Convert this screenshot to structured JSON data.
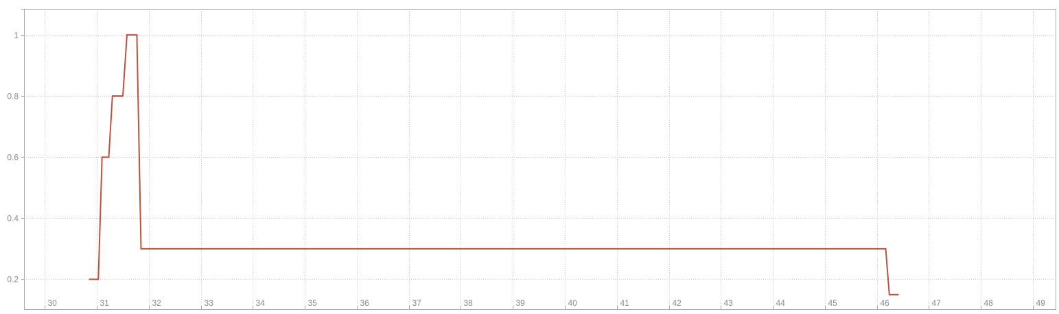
{
  "chart_data": {
    "type": "line",
    "title": "",
    "xlabel": "",
    "ylabel": "",
    "xlim": [
      29.6,
      49.45
    ],
    "ylim": [
      0.1,
      1.085
    ],
    "x_ticks": [
      30,
      31,
      32,
      33,
      34,
      35,
      36,
      37,
      38,
      39,
      40,
      41,
      42,
      43,
      44,
      45,
      46,
      47,
      48,
      49
    ],
    "x_tick_labels": [
      "30",
      "31",
      "32",
      "33",
      "34",
      "35",
      "36",
      "37",
      "38",
      "39",
      "40",
      "41",
      "42",
      "43",
      "44",
      "45",
      "46",
      "47",
      "48",
      "49"
    ],
    "y_ticks": [
      0.2,
      0.4,
      0.6,
      0.8,
      1.0
    ],
    "y_tick_labels": [
      "0.2",
      "0.4",
      "0.6",
      "0.8",
      "1"
    ],
    "grid": true,
    "legend": "none",
    "colors": {
      "line": "#c0513e"
    },
    "series": [
      {
        "points": [
          [
            30.85,
            0.2
          ],
          [
            31.03,
            0.2
          ],
          [
            31.1,
            0.6
          ],
          [
            31.23,
            0.6
          ],
          [
            31.3,
            0.8
          ],
          [
            31.5,
            0.8
          ],
          [
            31.58,
            1.0
          ],
          [
            31.77,
            1.0
          ],
          [
            31.85,
            0.3
          ],
          [
            46.17,
            0.3
          ],
          [
            46.24,
            0.15
          ],
          [
            46.42,
            0.15
          ]
        ]
      }
    ]
  }
}
